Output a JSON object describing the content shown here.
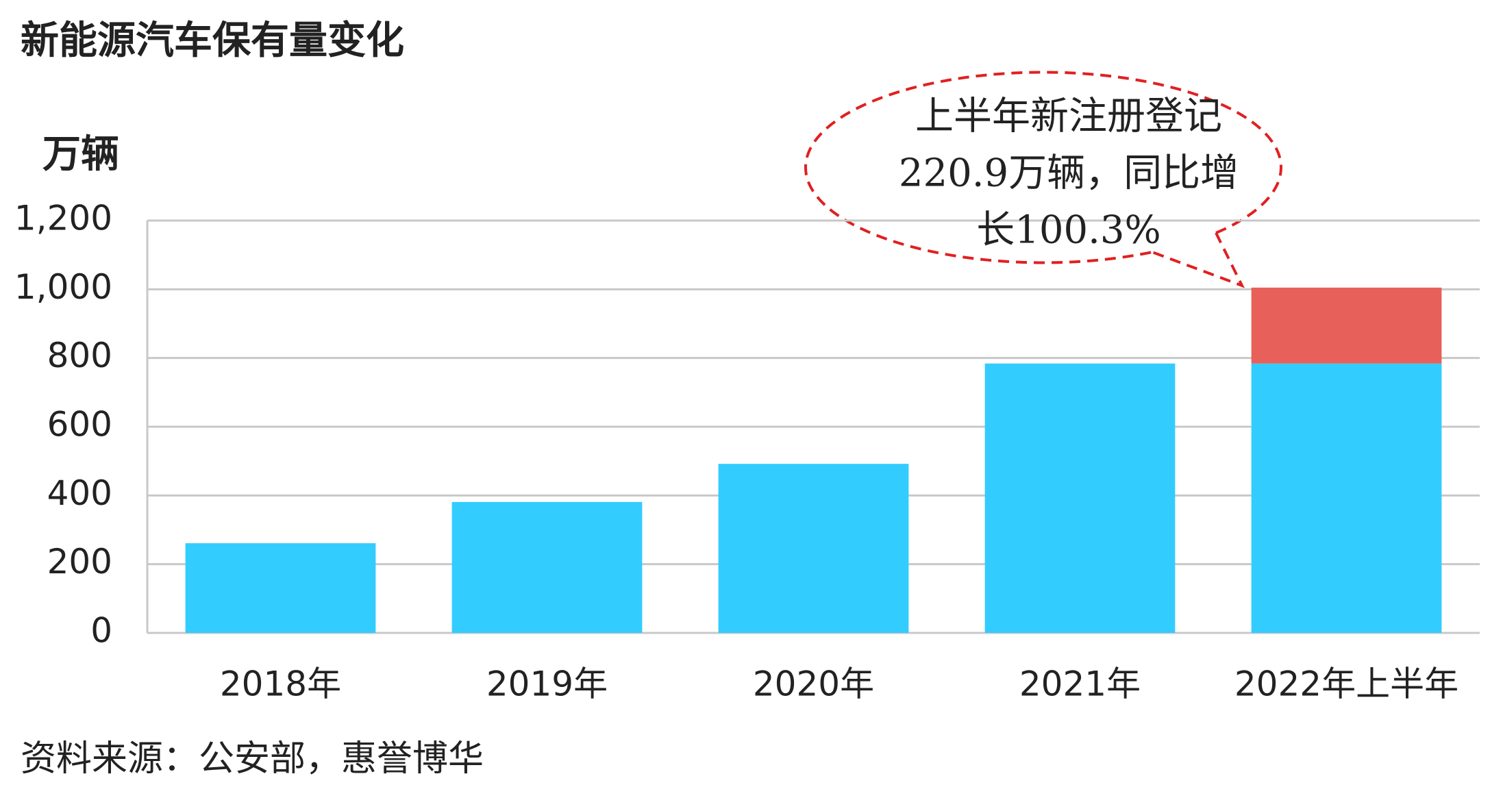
{
  "chart_data": {
    "type": "stacked_bar",
    "title": "新能源汽车保有量变化",
    "y_label": "万辆",
    "categories": [
      "2018年",
      "2019年",
      "2020年",
      "2021年",
      "2022年上半年"
    ],
    "series": [
      {
        "color": "#33ccff",
        "values": [
          261,
          381,
          492,
          784,
          784
        ]
      },
      {
        "color": "#e8605a",
        "values": [
          null,
          null,
          null,
          null,
          220.9
        ]
      }
    ],
    "ylim": [
      0,
      1200
    ],
    "yticks": [
      0,
      200,
      400,
      600,
      800,
      {
        "value": 1000,
        "label": "1,000"
      },
      {
        "value": 1200,
        "label": "1,200"
      }
    ],
    "grid": true,
    "annotation": [
      "上半年新注册登记",
      "220.9万辆，同比增",
      "长100.3%"
    ],
    "source": "资料来源：公安部，惠誉博华"
  }
}
